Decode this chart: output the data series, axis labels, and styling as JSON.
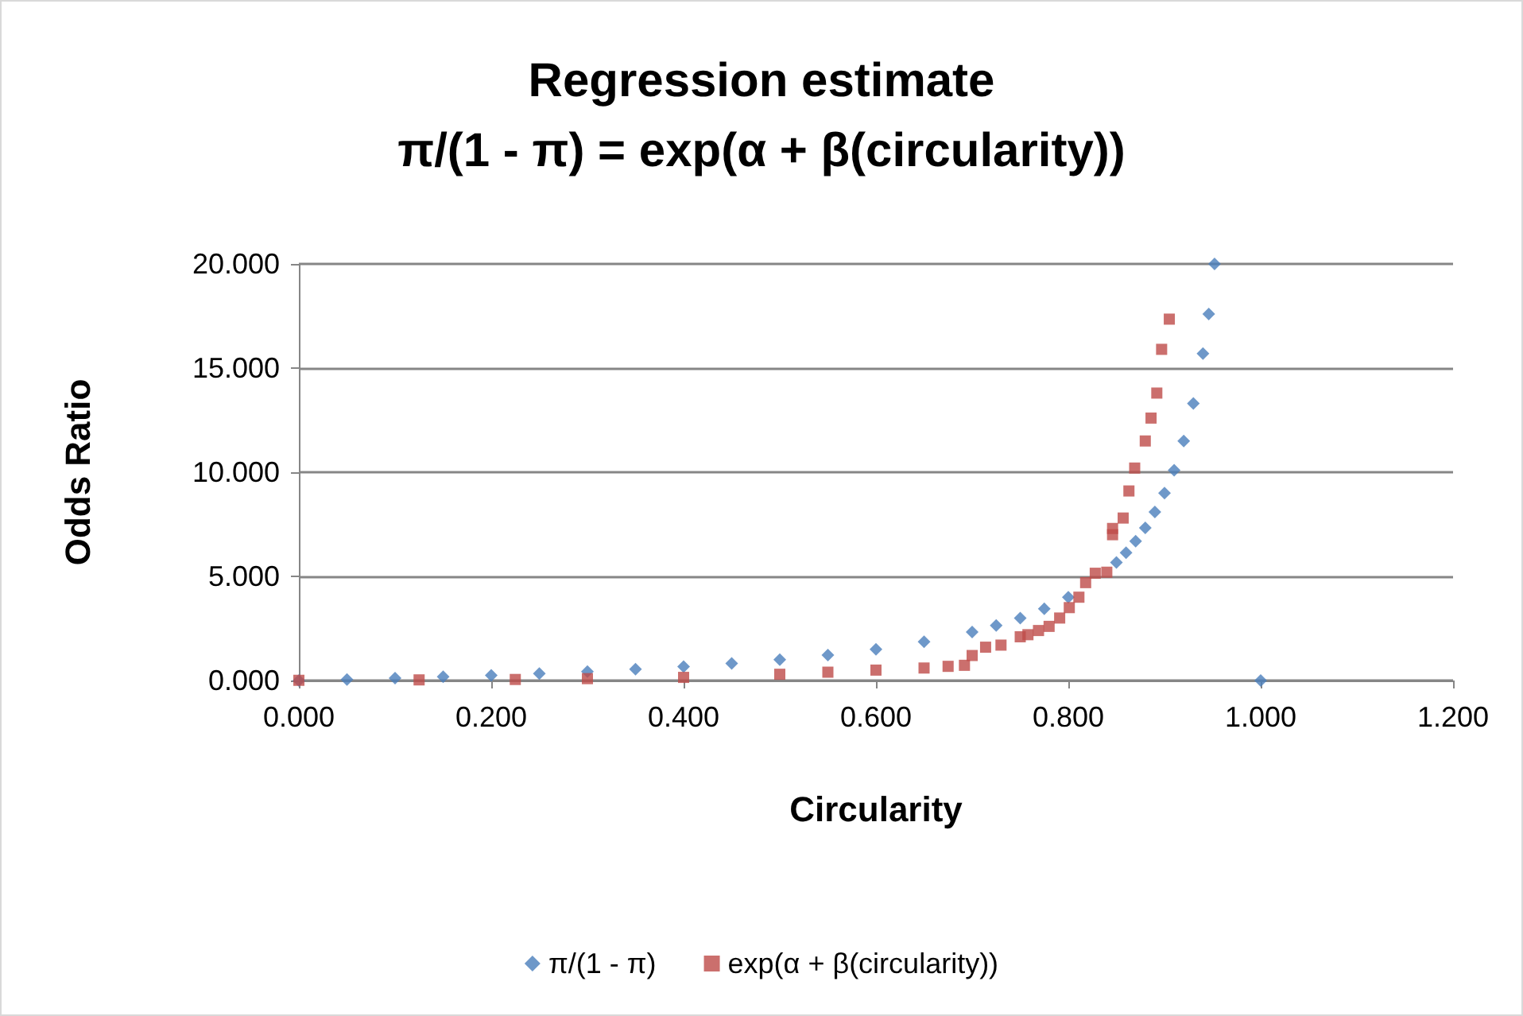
{
  "chart_data": {
    "type": "scatter",
    "title": "Regression estimate",
    "subtitle": "π/(1 - π) = exp(α + β(circularity))",
    "xlabel": "Circularity",
    "ylabel": "Odds Ratio",
    "xlim": [
      0,
      1.2
    ],
    "xticks": [
      {
        "value": 0,
        "label": "0.000"
      },
      {
        "value": 0.2,
        "label": "0.200"
      },
      {
        "value": 0.4,
        "label": "0.400"
      },
      {
        "value": 0.6,
        "label": "0.600"
      },
      {
        "value": 0.8,
        "label": "0.800"
      },
      {
        "value": 1,
        "label": "1.000"
      },
      {
        "value": 1.2,
        "label": "1.200"
      }
    ],
    "ylim": [
      0,
      20
    ],
    "yticks": [
      {
        "value": 0,
        "label": "0.000"
      },
      {
        "value": 5,
        "label": "5.000"
      },
      {
        "value": 10,
        "label": "10.000"
      },
      {
        "value": 15,
        "label": "15.000"
      },
      {
        "value": 20,
        "label": "20.000"
      }
    ],
    "grid": "y",
    "legend": "bottom",
    "series": [
      {
        "name": "π/(1 - π)",
        "color": "#4a7ebb",
        "marker": "diamond",
        "x": [
          0,
          0.05,
          0.1,
          0.15,
          0.2,
          0.25,
          0.3,
          0.35,
          0.4,
          0.45,
          0.5,
          0.55,
          0.6,
          0.65,
          0.7,
          0.725,
          0.75,
          0.775,
          0.8,
          0.85,
          0.86,
          0.87,
          0.88,
          0.89,
          0.9,
          0.91,
          0.92,
          0.93,
          0.94,
          0.946,
          0.952,
          1
        ],
        "values": [
          0,
          0.05,
          0.11,
          0.18,
          0.25,
          0.33,
          0.43,
          0.54,
          0.67,
          0.82,
          1,
          1.22,
          1.5,
          1.86,
          2.33,
          2.64,
          3,
          3.44,
          4,
          5.67,
          6.14,
          6.69,
          7.33,
          8.09,
          9,
          10.1,
          11.5,
          13.3,
          15.7,
          17.6,
          20,
          0
        ]
      },
      {
        "name": "exp(α + β(circularity))",
        "color": "#be4b48",
        "marker": "square",
        "x": [
          0,
          0.125,
          0.225,
          0.3,
          0.4,
          0.5,
          0.55,
          0.6,
          0.65,
          0.675,
          0.692,
          0.7,
          0.714,
          0.73,
          0.75,
          0.758,
          0.769,
          0.78,
          0.791,
          0.801,
          0.811,
          0.818,
          0.828,
          0.84,
          0.846,
          0.846,
          0.857,
          0.863,
          0.869,
          0.88,
          0.886,
          0.892,
          0.897,
          0.905
        ],
        "values": [
          0.01,
          0.03,
          0.05,
          0.09,
          0.15,
          0.3,
          0.4,
          0.5,
          0.6,
          0.68,
          0.73,
          1.2,
          1.6,
          1.7,
          2.1,
          2.2,
          2.4,
          2.6,
          3,
          3.5,
          4,
          4.7,
          5.15,
          5.2,
          7,
          7.3,
          7.8,
          9.1,
          10.2,
          11.5,
          12.6,
          13.8,
          15.9,
          17.35
        ]
      }
    ]
  }
}
